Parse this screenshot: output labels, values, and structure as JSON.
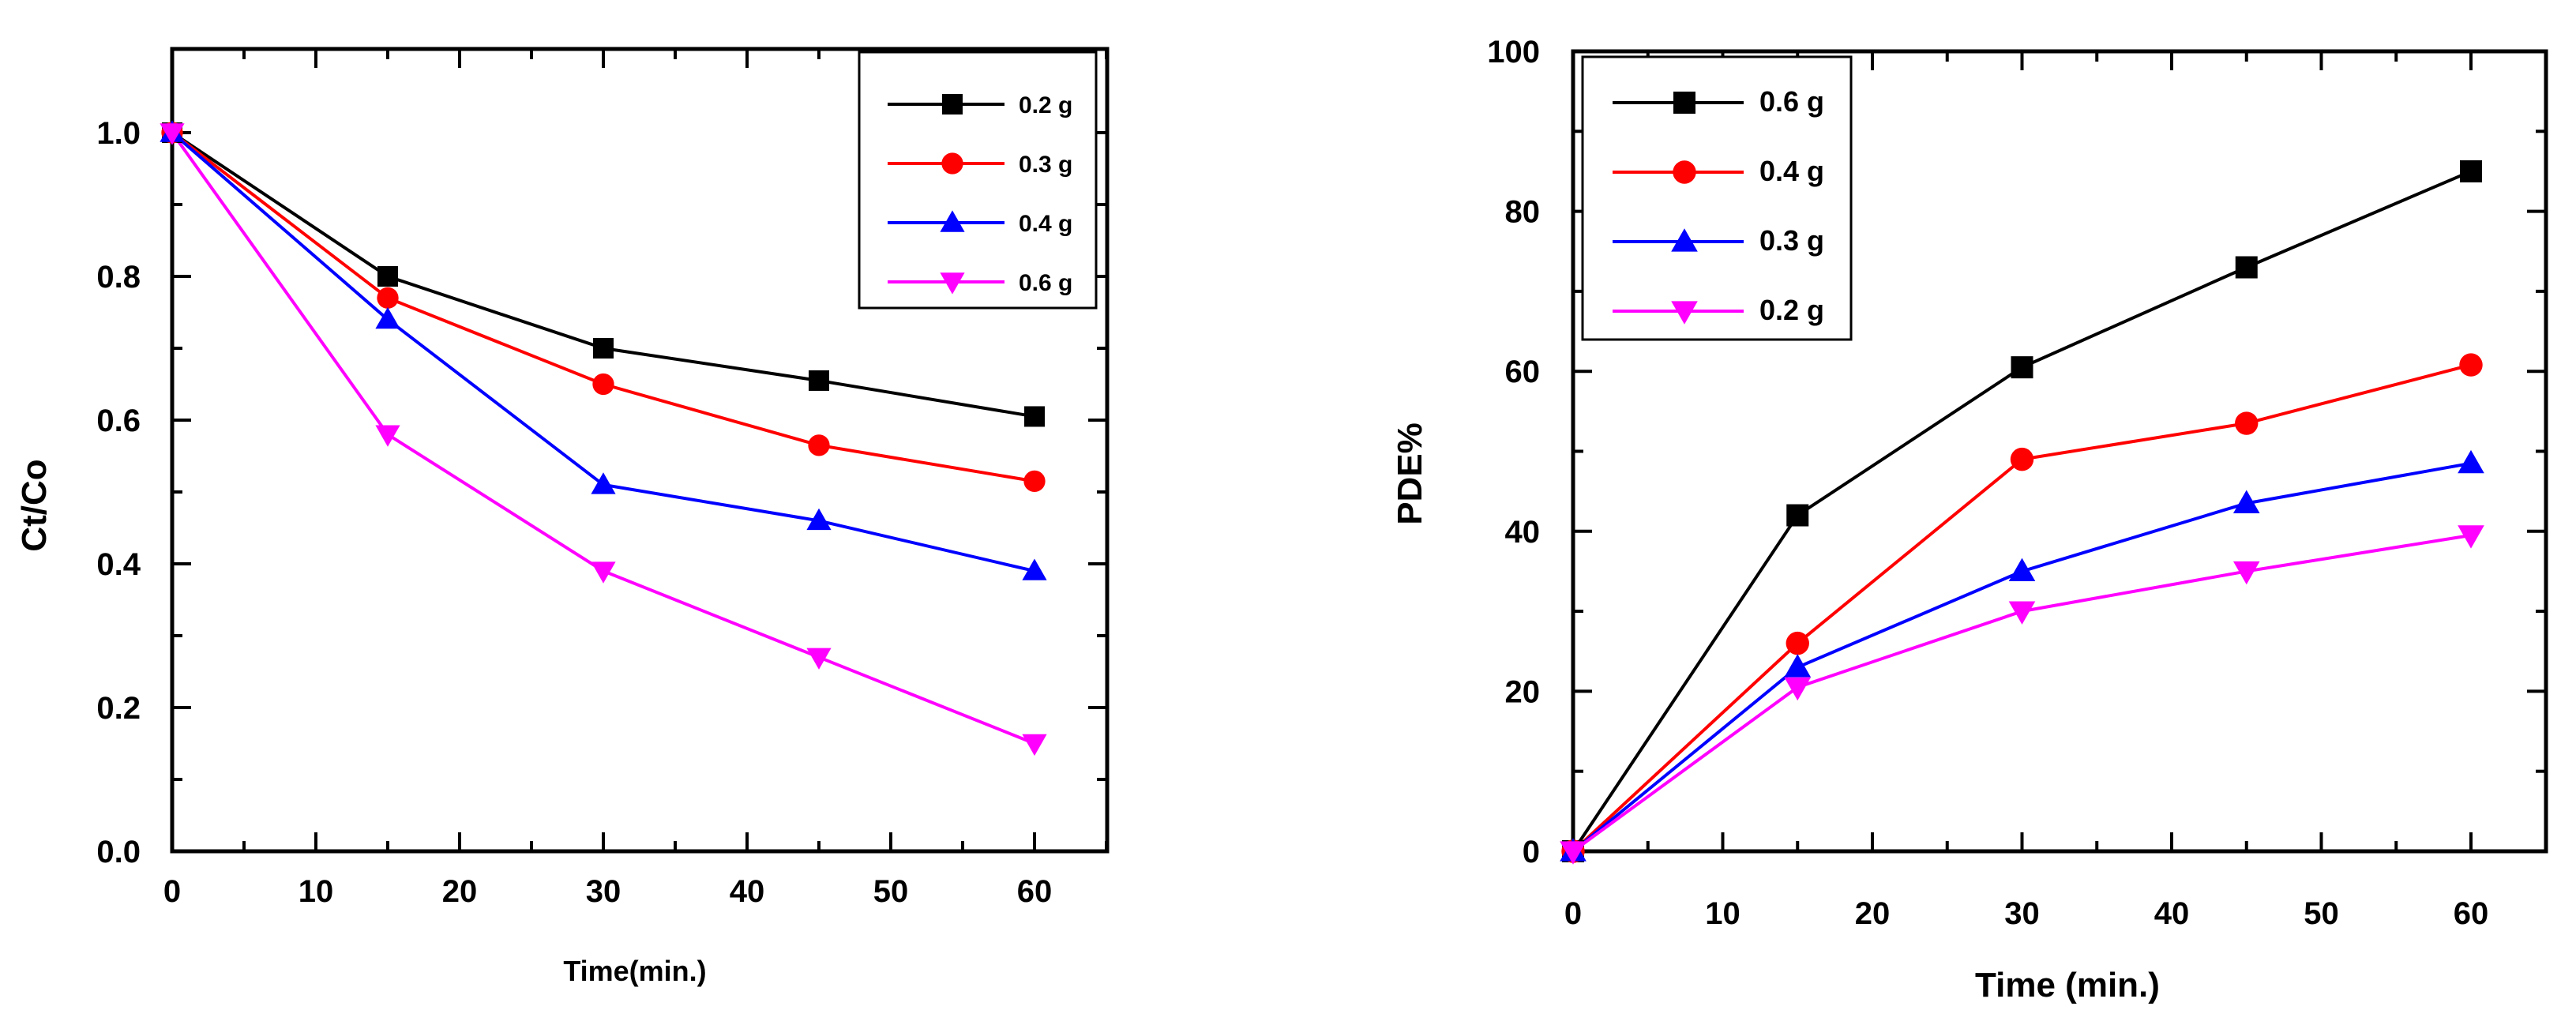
{
  "chart_data": [
    {
      "type": "line",
      "xlabel": "Time(min.)",
      "ylabel": "Ct/Co",
      "xlim": [
        0,
        65
      ],
      "ylim": [
        0,
        1.1
      ],
      "xticks": [
        0,
        10,
        20,
        30,
        40,
        50,
        60
      ],
      "yticks": [
        0.0,
        0.2,
        0.4,
        0.6,
        0.8,
        1.0
      ],
      "xtick_labels": [
        "0",
        "10",
        "20",
        "30",
        "40",
        "50",
        "60"
      ],
      "ytick_labels": [
        "0.0",
        "0.2",
        "0.4",
        "0.6",
        "0.8",
        "1.0"
      ],
      "legend_position": "top-right",
      "x": [
        0,
        15,
        30,
        45,
        60
      ],
      "series": [
        {
          "name": "0.2 g",
          "color": "#000000",
          "marker": "square",
          "values": [
            1.0,
            0.8,
            0.7,
            0.655,
            0.605
          ]
        },
        {
          "name": "0.3 g",
          "color": "#ff0000",
          "marker": "circle",
          "values": [
            1.0,
            0.77,
            0.65,
            0.565,
            0.515
          ]
        },
        {
          "name": "0.4 g",
          "color": "#0000ff",
          "marker": "triangle-up",
          "values": [
            1.0,
            0.74,
            0.51,
            0.46,
            0.39
          ]
        },
        {
          "name": "0.6 g",
          "color": "#ff00ff",
          "marker": "triangle-down",
          "values": [
            1.0,
            0.58,
            0.39,
            0.27,
            0.15
          ]
        }
      ]
    },
    {
      "type": "line",
      "xlabel": "Time (min.)",
      "ylabel": "PDE%",
      "xlim": [
        0,
        65
      ],
      "ylim": [
        0,
        100
      ],
      "xticks": [
        0,
        10,
        20,
        30,
        40,
        50,
        60
      ],
      "yticks": [
        0,
        20,
        40,
        60,
        80,
        100
      ],
      "xtick_labels": [
        "0",
        "10",
        "20",
        "30",
        "40",
        "50",
        "60"
      ],
      "ytick_labels": [
        "0",
        "20",
        "40",
        "60",
        "80",
        "100"
      ],
      "legend_position": "top-left",
      "x": [
        0,
        15,
        30,
        45,
        60
      ],
      "series": [
        {
          "name": "0.6 g",
          "color": "#000000",
          "marker": "square",
          "values": [
            0,
            42,
            60.5,
            73,
            85
          ]
        },
        {
          "name": "0.4 g",
          "color": "#ff0000",
          "marker": "circle",
          "values": [
            0,
            26,
            49,
            53.5,
            60.8
          ]
        },
        {
          "name": "0.3 g",
          "color": "#0000ff",
          "marker": "triangle-up",
          "values": [
            0,
            23,
            35,
            43.5,
            48.5
          ]
        },
        {
          "name": "0.2 g",
          "color": "#ff00ff",
          "marker": "triangle-down",
          "values": [
            0,
            20.5,
            30,
            35,
            39.5
          ]
        }
      ]
    }
  ]
}
